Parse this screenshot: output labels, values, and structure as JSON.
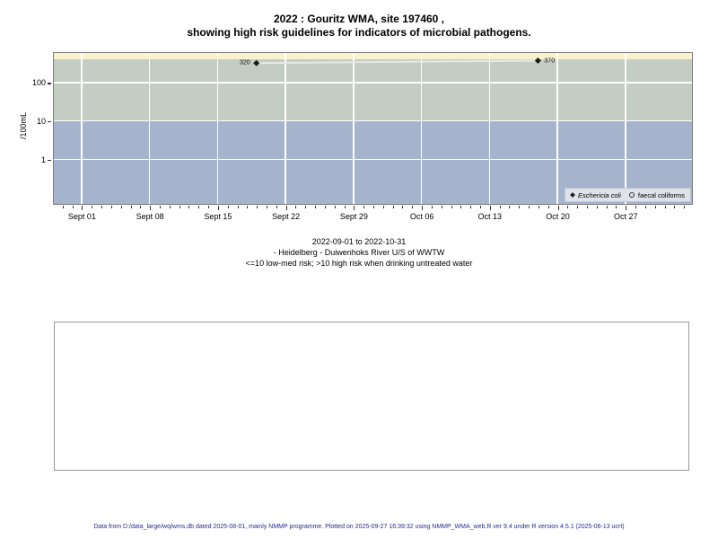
{
  "page": {
    "title_line1": "2022 : Gouritz WMA, site 197460 ,",
    "title_line2": "showing high risk guidelines for indicators of microbial pathogens.",
    "caption_line1": "2022-09-01 to 2022-10-31",
    "caption_line2": "- Heidelberg - Duiwenhoks River U/S of WWTW",
    "caption_line3": "<=10 low-med risk; >10 high risk when drinking untreated water",
    "footer": "Data from D:/data_large/wq/wms.db dated 2025-08-01, mainly NMMP programme. Plotted on 2025-09-27 16:39:32 using NMMP_WMA_web.R ver 9.4 under R version 4.5.1 (2025-06-13 ucrt)"
  },
  "chart_data": {
    "type": "scatter",
    "title": "2022 : Gouritz WMA, site 197460 , showing high risk guidelines for indicators of microbial pathogens.",
    "subtitle": "2022-09-01 to 2022-10-31 - Heidelberg - Duiwenhoks River U/S of WWTW",
    "ylabel": "/100mL",
    "xlabel": "",
    "y_scale": "log",
    "ylim": [
      0.07,
      585
    ],
    "y_ticks": [
      1,
      10,
      100
    ],
    "x_start": "2022-09-01",
    "x_end": "2022-10-31",
    "x_total_days": 60,
    "x_pad_days": 2.86,
    "x_tick_days": [
      0,
      7,
      14,
      21,
      28,
      35,
      42,
      49,
      56
    ],
    "x_tick_labels": [
      "Sept 01",
      "Sept 08",
      "Sept 15",
      "Sept 22",
      "Sept 29",
      "Oct 06",
      "Oct 13",
      "Oct 20",
      "Oct 27"
    ],
    "grid": true,
    "grid_color": "#ffffff",
    "bands": [
      {
        "name": "above-alert",
        "from": 400,
        "to": 585,
        "color": "#f8f3cd"
      },
      {
        "name": "high-risk",
        "from": 10,
        "to": 400,
        "color": "#c4cdc3"
      },
      {
        "name": "low-med-risk",
        "from": 0.07,
        "to": 10,
        "color": "#a5b3cd"
      }
    ],
    "risk_note": "<=10 low-med risk; >10 high risk when drinking untreated water",
    "series": [
      {
        "name": "Eschericia coli",
        "marker": "filled-diamond",
        "marker_color": "#1a1a1a",
        "line_color": "#e8e8e8",
        "points": [
          {
            "date": "2022-09-19",
            "day": 18,
            "value": 320,
            "label": "320",
            "label_side": "left"
          },
          {
            "date": "2022-10-18",
            "day": 47,
            "value": 370,
            "label": "370",
            "label_side": "right"
          }
        ]
      },
      {
        "name": "faecal coliforms",
        "marker": "open-circle",
        "marker_color": "#1a1a1a",
        "points": []
      }
    ],
    "legend": {
      "position": "bottom-right",
      "items": [
        {
          "label": "Eschericia coli",
          "marker": "filled-diamond",
          "italic": true
        },
        {
          "label": "faecal coliforms",
          "marker": "open-circle",
          "italic": false
        }
      ]
    }
  }
}
